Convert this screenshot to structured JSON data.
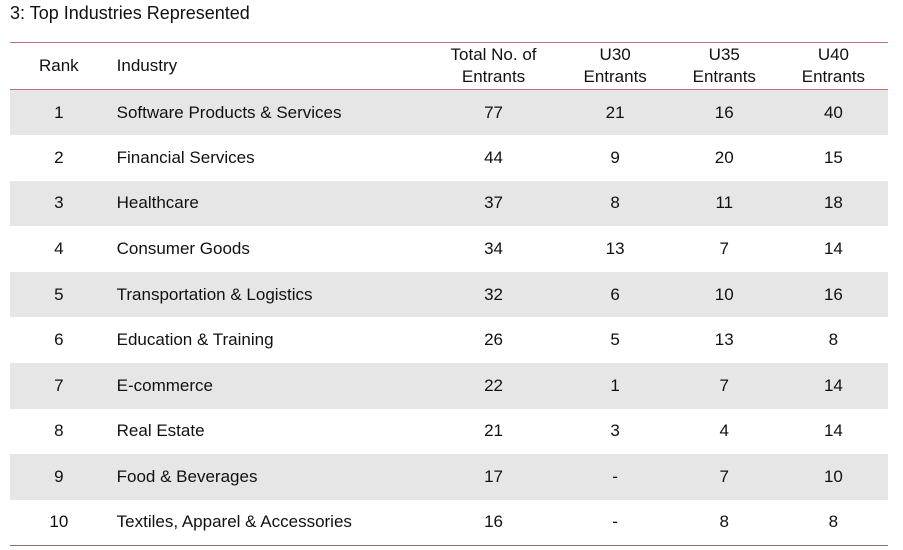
{
  "title": "3: Top Industries Represented",
  "columns": {
    "rank": "Rank",
    "industry": "Industry",
    "total_line1": "Total No. of",
    "total_line2": "Entrants",
    "u30_line1": "U30",
    "u35_line1": "U35",
    "u40_line1": "U40",
    "entrants": "Entrants"
  },
  "rows": [
    {
      "rank": "1",
      "industry": "Software Products & Services",
      "total": "77",
      "u30": "21",
      "u35": "16",
      "u40": "40"
    },
    {
      "rank": "2",
      "industry": "Financial Services",
      "total": "44",
      "u30": "9",
      "u35": "20",
      "u40": "15"
    },
    {
      "rank": "3",
      "industry": "Healthcare",
      "total": "37",
      "u30": "8",
      "u35": "11",
      "u40": "18"
    },
    {
      "rank": "4",
      "industry": "Consumer Goods",
      "total": "34",
      "u30": "13",
      "u35": "7",
      "u40": "14"
    },
    {
      "rank": "5",
      "industry": "Transportation & Logistics",
      "total": "32",
      "u30": "6",
      "u35": "10",
      "u40": "16"
    },
    {
      "rank": "6",
      "industry": "Education & Training",
      "total": "26",
      "u30": "5",
      "u35": "13",
      "u40": "8"
    },
    {
      "rank": "7",
      "industry": "E-commerce",
      "total": "22",
      "u30": "1",
      "u35": "7",
      "u40": "14"
    },
    {
      "rank": "8",
      "industry": "Real Estate",
      "total": "21",
      "u30": "3",
      "u35": "4",
      "u40": "14"
    },
    {
      "rank": "9",
      "industry": "Food & Beverages",
      "total": "17",
      "u30": "-",
      "u35": "7",
      "u40": "10"
    },
    {
      "rank": "10",
      "industry": "Textiles, Apparel & Accessories",
      "total": "16",
      "u30": "-",
      "u35": "8",
      "u40": "8"
    }
  ]
}
